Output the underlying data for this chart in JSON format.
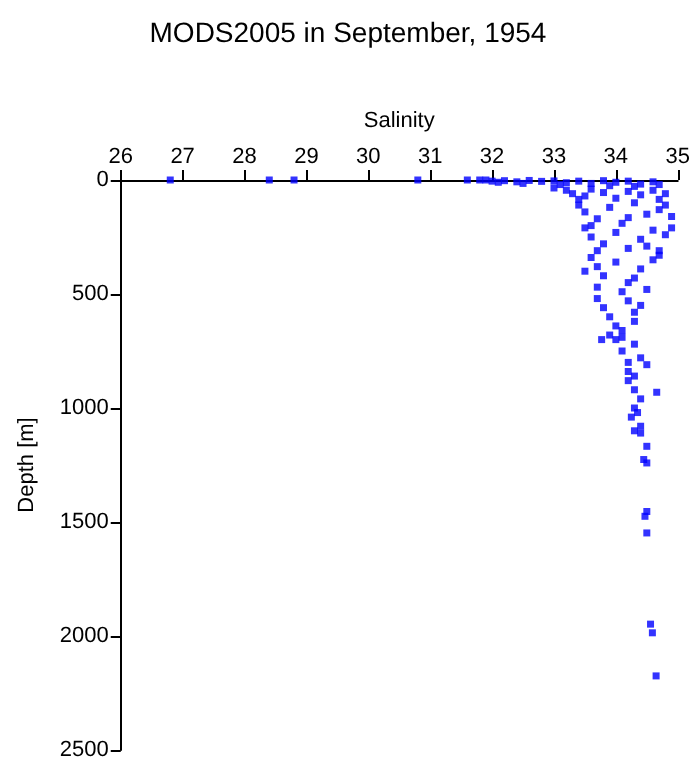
{
  "chart_data": {
    "type": "scatter",
    "title": "MODS2005 in September, 1954",
    "xlabel": "Salinity",
    "ylabel": "Depth [m]",
    "xlim": [
      26,
      35
    ],
    "xticks": [
      26,
      27,
      28,
      29,
      30,
      31,
      32,
      33,
      34,
      35
    ],
    "ylim": [
      2500,
      0
    ],
    "yticks": [
      0,
      500,
      1000,
      1500,
      2000,
      2500
    ],
    "grid": false,
    "marker": "square",
    "series": [
      {
        "color": "#0000ff",
        "x": [
          26.8,
          28.4,
          28.8,
          30.8,
          31.6,
          31.8,
          31.9,
          32.0,
          32.1,
          32.2,
          32.4,
          32.6,
          32.8,
          33.0,
          33.2,
          33.4,
          33.6,
          33.8,
          34.0,
          34.2,
          34.4,
          34.6,
          32.5,
          33.1,
          33.9,
          34.3,
          34.7,
          33.0,
          33.2,
          33.3,
          33.5,
          33.6,
          33.8,
          34.0,
          34.2,
          34.4,
          34.6,
          34.8,
          33.4,
          34.7,
          33.4,
          33.5,
          33.7,
          33.9,
          34.1,
          34.3,
          34.5,
          34.7,
          34.9,
          33.6,
          34.8,
          34.2,
          33.5,
          33.6,
          33.8,
          34.0,
          34.2,
          34.4,
          34.6,
          34.8,
          34.9,
          33.7,
          34.5,
          34.7,
          33.6,
          33.7,
          33.5,
          33.8,
          34.0,
          34.2,
          34.4,
          34.6,
          34.7,
          33.7,
          34.1,
          34.5,
          34.3,
          33.7,
          33.8,
          33.9,
          34.0,
          34.2,
          34.3,
          34.4,
          34.1,
          34.3,
          33.9,
          34.0,
          34.1,
          34.2,
          34.3,
          34.4,
          34.2,
          34.3,
          34.1,
          34.5,
          34.2,
          34.3,
          34.4,
          34.3,
          34.25,
          34.4,
          34.3,
          34.35,
          34.4,
          34.5,
          34.45,
          34.5,
          34.5,
          34.47,
          34.5,
          34.56,
          34.59,
          34.65,
          33.77,
          34.66
        ],
        "values": [
          0,
          0,
          0,
          0,
          0,
          0,
          0,
          5,
          10,
          3,
          8,
          2,
          6,
          4,
          12,
          5,
          15,
          3,
          10,
          5,
          18,
          8,
          15,
          20,
          25,
          28,
          20,
          35,
          45,
          60,
          70,
          40,
          55,
          80,
          50,
          65,
          45,
          60,
          85,
          85,
          110,
          140,
          170,
          120,
          190,
          100,
          150,
          130,
          160,
          200,
          110,
          165,
          210,
          250,
          280,
          230,
          300,
          260,
          220,
          240,
          210,
          310,
          290,
          310,
          340,
          380,
          400,
          420,
          360,
          450,
          390,
          350,
          330,
          470,
          490,
          480,
          430,
          520,
          560,
          600,
          640,
          530,
          580,
          550,
          660,
          620,
          680,
          700,
          750,
          800,
          720,
          780,
          840,
          860,
          690,
          810,
          880,
          920,
          960,
          1000,
          1040,
          1080,
          1100,
          1020,
          1110,
          1168,
          1226,
          1241,
          1454,
          1475,
          1548,
          1948,
          1986,
          2175,
          700,
          931
        ]
      }
    ]
  }
}
